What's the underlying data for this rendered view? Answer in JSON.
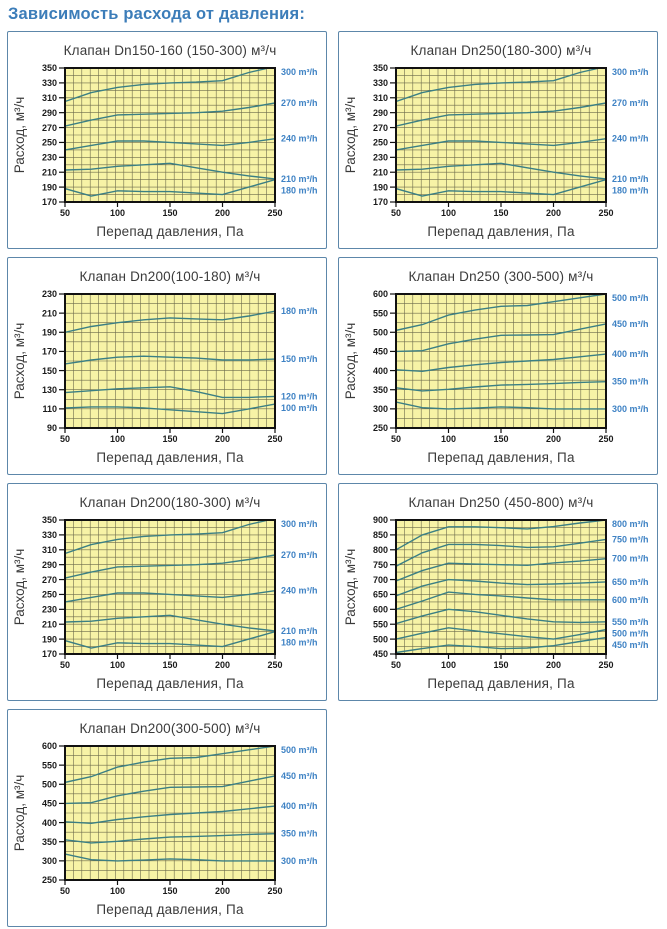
{
  "page": {
    "heading": "Зависимость расхода от давления:"
  },
  "colors": {
    "heading": "#3c7db9",
    "panel_border": "#5d87aa",
    "plot_bg": "#f7f3a6",
    "grid": "#55543c",
    "plot_border": "#111111",
    "curve": "#3b7f84",
    "series_label": "#3e82c4",
    "tick_text": "#1a1a1a",
    "title_text": "#3b3b3b"
  },
  "chart_data": [
    {
      "type": "line",
      "title": "Клапан Dn150-160 (150-300) м³/ч",
      "xlabel": "Перепад давления, Па",
      "ylabel": "Расход, м³/ч",
      "x": [
        50,
        75,
        100,
        125,
        150,
        175,
        200,
        225,
        250
      ],
      "xticks": [
        50,
        100,
        150,
        200,
        250
      ],
      "xlim": [
        50,
        250
      ],
      "ylim": [
        170,
        350
      ],
      "ytick_step": 20,
      "grid_minor": {
        "x_step": 8,
        "y_step": 10
      },
      "line_labels": "right",
      "grid": true,
      "series": [
        {
          "name": "300 m³/h",
          "values": [
            305,
            317,
            324,
            328,
            330,
            331,
            333,
            344,
            352
          ]
        },
        {
          "name": "270 m³/h",
          "values": [
            272,
            280,
            287,
            288,
            289,
            290,
            292,
            297,
            303
          ]
        },
        {
          "name": "240 m³/h",
          "values": [
            240,
            246,
            252,
            252,
            250,
            248,
            246,
            250,
            255
          ]
        },
        {
          "name": "210 m³/h",
          "values": [
            213,
            214,
            218,
            220,
            222,
            216,
            210,
            205,
            201
          ]
        },
        {
          "name": "180 m³/h",
          "values": [
            188,
            178,
            185,
            184,
            184,
            182,
            180,
            190,
            200
          ]
        }
      ]
    },
    {
      "type": "line",
      "title": "Клапан Dn250(180-300) м³/ч",
      "xlabel": "Перепад давления, Па",
      "ylabel": "Расход, м³/ч",
      "x": [
        50,
        75,
        100,
        125,
        150,
        175,
        200,
        225,
        250
      ],
      "xticks": [
        50,
        100,
        150,
        200,
        250
      ],
      "xlim": [
        50,
        250
      ],
      "ylim": [
        170,
        350
      ],
      "ytick_step": 20,
      "grid_minor": {
        "x_step": 8,
        "y_step": 10
      },
      "line_labels": "right",
      "grid": true,
      "series": [
        {
          "name": "300 m³/h",
          "values": [
            305,
            317,
            324,
            328,
            330,
            331,
            333,
            344,
            352
          ]
        },
        {
          "name": "270 m³/h",
          "values": [
            272,
            280,
            287,
            288,
            289,
            290,
            292,
            297,
            303
          ]
        },
        {
          "name": "240 m³/h",
          "values": [
            240,
            246,
            252,
            252,
            250,
            248,
            246,
            250,
            255
          ]
        },
        {
          "name": "210 m³/h",
          "values": [
            213,
            214,
            218,
            220,
            222,
            216,
            210,
            205,
            201
          ]
        },
        {
          "name": "180 m³/h",
          "values": [
            188,
            178,
            185,
            184,
            184,
            182,
            180,
            190,
            200
          ]
        }
      ]
    },
    {
      "type": "line",
      "title": "Клапан Dn200(100-180) м³/ч",
      "xlabel": "Перепад давления, Па",
      "ylabel": "Расход, м³/ч",
      "x": [
        50,
        75,
        100,
        125,
        150,
        175,
        200,
        225,
        250
      ],
      "xticks": [
        50,
        100,
        150,
        200,
        250
      ],
      "xlim": [
        50,
        250
      ],
      "ylim": [
        90,
        230
      ],
      "ytick_step": 20,
      "grid_minor": {
        "x_step": 8,
        "y_step": 10
      },
      "line_labels": "right",
      "grid": true,
      "series": [
        {
          "name": "180 m³/h",
          "values": [
            190,
            196,
            200,
            203,
            205,
            204,
            203,
            207,
            212
          ]
        },
        {
          "name": "150 m³/h",
          "values": [
            157,
            161,
            164,
            165,
            164,
            163,
            161,
            161,
            162
          ]
        },
        {
          "name": "120 m³/h",
          "values": [
            127,
            129,
            131,
            132,
            133,
            128,
            122,
            122,
            123
          ]
        },
        {
          "name": "100 m³/h",
          "values": [
            111,
            112,
            112,
            111,
            109,
            107,
            105,
            110,
            115
          ]
        }
      ]
    },
    {
      "type": "line",
      "title": "Клапан Dn250 (300-500) м³/ч",
      "xlabel": "Перепад давления, Па",
      "ylabel": "Расход, м³/ч",
      "x": [
        50,
        75,
        100,
        125,
        150,
        175,
        200,
        225,
        250
      ],
      "xticks": [
        50,
        100,
        150,
        200,
        250
      ],
      "xlim": [
        50,
        250
      ],
      "ylim": [
        250,
        600
      ],
      "ytick_step": 50,
      "grid_minor": {
        "x_step": 8,
        "y_step": 25
      },
      "line_labels": "right",
      "grid": true,
      "series": [
        {
          "name": "500 m³/h",
          "values": [
            505,
            520,
            545,
            558,
            568,
            570,
            580,
            590,
            600
          ]
        },
        {
          "name": "450 m³/h",
          "values": [
            450,
            452,
            470,
            482,
            492,
            493,
            494,
            508,
            522
          ]
        },
        {
          "name": "400 m³/h",
          "values": [
            402,
            398,
            408,
            415,
            421,
            425,
            429,
            436,
            443
          ]
        },
        {
          "name": "350 m³/h",
          "values": [
            355,
            347,
            351,
            357,
            362,
            364,
            366,
            369,
            371
          ]
        },
        {
          "name": "300 m³/h",
          "values": [
            318,
            303,
            300,
            302,
            305,
            303,
            300,
            300,
            300
          ]
        }
      ]
    },
    {
      "type": "line",
      "title": "Клапан Dn200(180-300) м³/ч",
      "xlabel": "Перепад давления, Па",
      "ylabel": "Расход, м³/ч",
      "x": [
        50,
        75,
        100,
        125,
        150,
        175,
        200,
        225,
        250
      ],
      "xticks": [
        50,
        100,
        150,
        200,
        250
      ],
      "xlim": [
        50,
        250
      ],
      "ylim": [
        170,
        350
      ],
      "ytick_step": 20,
      "grid_minor": {
        "x_step": 8,
        "y_step": 10
      },
      "line_labels": "right",
      "grid": true,
      "series": [
        {
          "name": "300 m³/h",
          "values": [
            305,
            317,
            324,
            328,
            330,
            331,
            333,
            344,
            352
          ]
        },
        {
          "name": "270 m³/h",
          "values": [
            272,
            280,
            287,
            288,
            289,
            290,
            292,
            297,
            303
          ]
        },
        {
          "name": "240 m³/h",
          "values": [
            240,
            246,
            252,
            252,
            250,
            248,
            246,
            250,
            255
          ]
        },
        {
          "name": "210 m³/h",
          "values": [
            213,
            214,
            218,
            220,
            222,
            216,
            210,
            205,
            201
          ]
        },
        {
          "name": "180 m³/h",
          "values": [
            188,
            178,
            185,
            184,
            184,
            182,
            180,
            190,
            200
          ]
        }
      ]
    },
    {
      "type": "line",
      "title": "Клапан Dn250 (450-800) м³/ч",
      "xlabel": "Перепад давления, Па",
      "ylabel": "Расход, м³/ч",
      "x": [
        50,
        75,
        100,
        125,
        150,
        175,
        200,
        225,
        250
      ],
      "xticks": [
        50,
        100,
        150,
        200,
        250
      ],
      "xlim": [
        50,
        250
      ],
      "ylim": [
        450,
        900
      ],
      "ytick_step": 50,
      "grid_minor": {
        "x_step": 8,
        "y_step": 25
      },
      "line_labels": "right",
      "grid": true,
      "series": [
        {
          "name": "800 m³/h",
          "values": [
            800,
            850,
            877,
            877,
            874,
            870,
            878,
            890,
            900
          ]
        },
        {
          "name": "750 m³/h",
          "values": [
            745,
            790,
            818,
            818,
            814,
            808,
            810,
            822,
            835
          ]
        },
        {
          "name": "700 m³/h",
          "values": [
            695,
            730,
            755,
            752,
            750,
            748,
            756,
            762,
            770
          ]
        },
        {
          "name": "650 m³/h",
          "values": [
            645,
            678,
            700,
            695,
            688,
            683,
            685,
            688,
            692
          ]
        },
        {
          "name": "600 m³/h",
          "values": [
            600,
            628,
            658,
            650,
            645,
            638,
            632,
            632,
            632
          ]
        },
        {
          "name": "550 m³/h",
          "values": [
            552,
            578,
            600,
            592,
            580,
            568,
            558,
            556,
            558
          ]
        },
        {
          "name": "500 m³/h",
          "values": [
            500,
            520,
            538,
            528,
            518,
            508,
            500,
            515,
            532
          ]
        },
        {
          "name": "450 m³/h",
          "values": [
            455,
            468,
            480,
            475,
            468,
            470,
            478,
            492,
            505
          ]
        }
      ]
    },
    {
      "type": "line",
      "title": "Клапан Dn200(300-500) м³/ч",
      "xlabel": "Перепад давления, Па",
      "ylabel": "Расход, м³/ч",
      "x": [
        50,
        75,
        100,
        125,
        150,
        175,
        200,
        225,
        250
      ],
      "xticks": [
        50,
        100,
        150,
        200,
        250
      ],
      "xlim": [
        50,
        250
      ],
      "ylim": [
        250,
        600
      ],
      "ytick_step": 50,
      "grid_minor": {
        "x_step": 8,
        "y_step": 25
      },
      "line_labels": "right",
      "grid": true,
      "series": [
        {
          "name": "500 m³/h",
          "values": [
            505,
            520,
            545,
            558,
            568,
            570,
            580,
            590,
            600
          ]
        },
        {
          "name": "450 m³/h",
          "values": [
            450,
            452,
            470,
            482,
            492,
            493,
            494,
            508,
            522
          ]
        },
        {
          "name": "400 m³/h",
          "values": [
            402,
            398,
            408,
            415,
            421,
            425,
            429,
            436,
            443
          ]
        },
        {
          "name": "350 m³/h",
          "values": [
            355,
            347,
            351,
            357,
            362,
            364,
            366,
            369,
            371
          ]
        },
        {
          "name": "300 m³/h",
          "values": [
            318,
            303,
            300,
            302,
            305,
            303,
            300,
            300,
            300
          ]
        }
      ]
    }
  ]
}
